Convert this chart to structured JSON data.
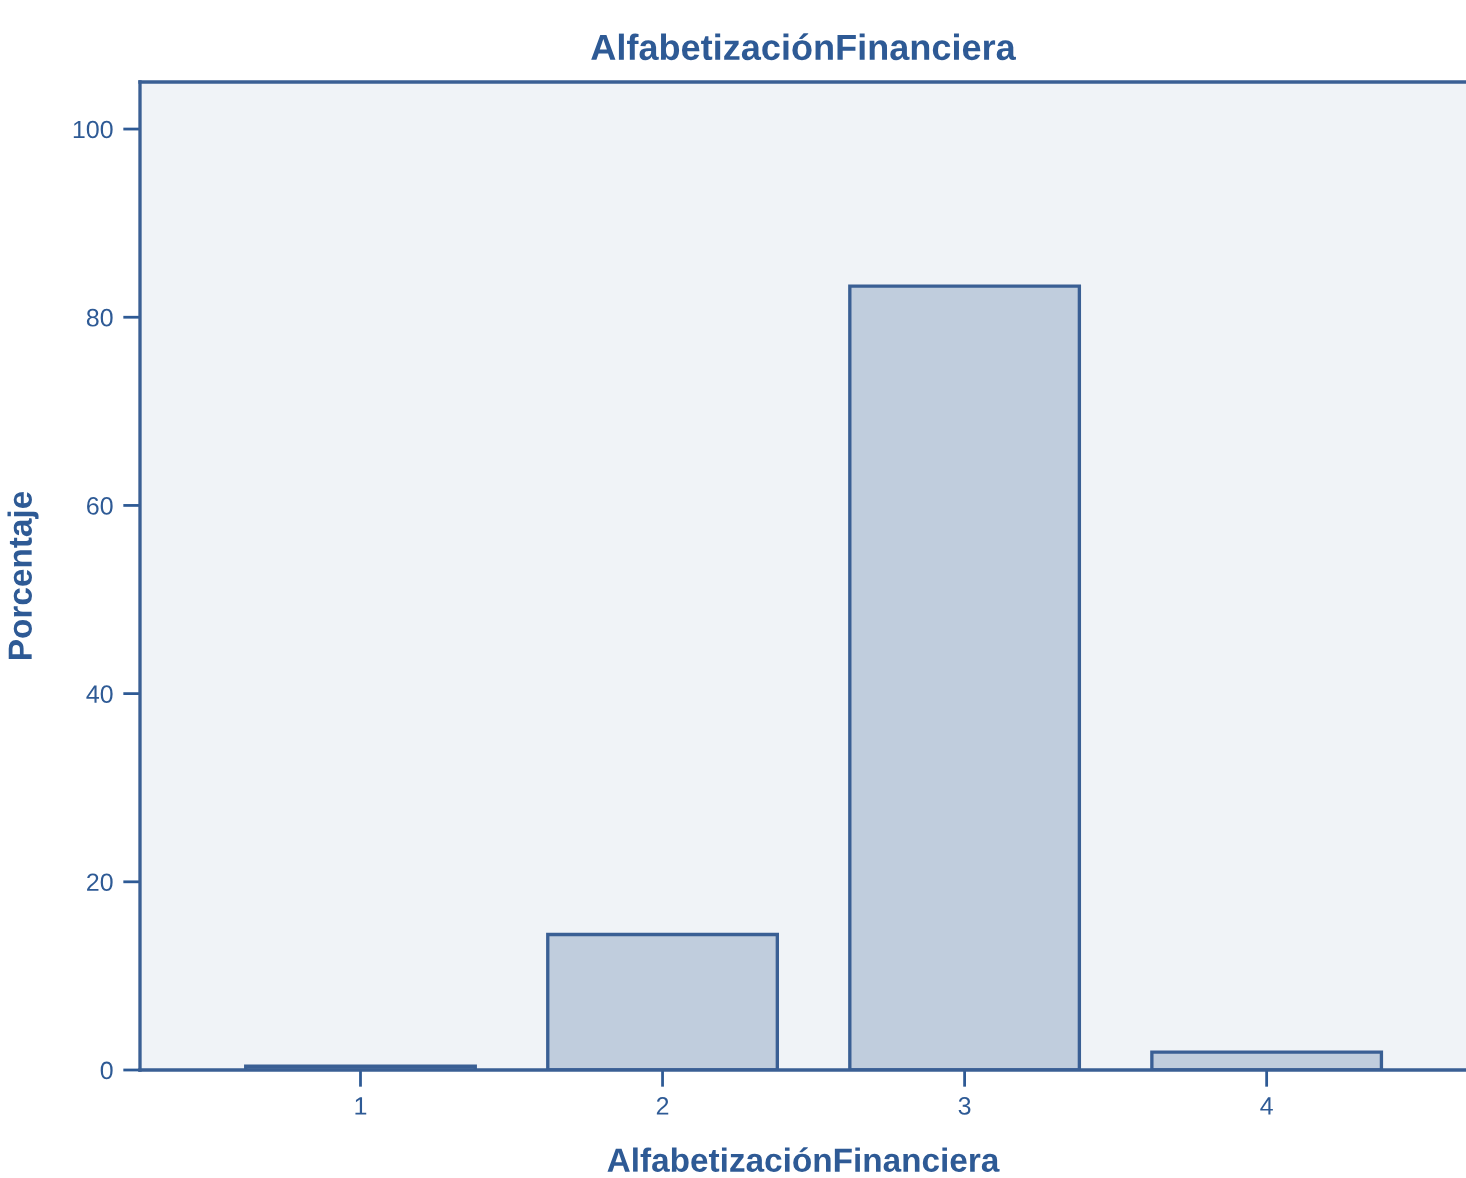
{
  "chart_data": {
    "type": "bar",
    "title": "AlfabetizaciónFinanciera",
    "xlabel": "AlfabetizaciónFinanciera",
    "ylabel": "Porcentaje",
    "categories": [
      "1",
      "2",
      "3",
      "4"
    ],
    "values": [
      0.4,
      14.4,
      83.3,
      1.9
    ],
    "color": "#c0cddd",
    "ylim": [
      0,
      105
    ],
    "yticks": [
      0,
      20,
      40,
      60,
      80,
      100
    ],
    "grid": false
  }
}
